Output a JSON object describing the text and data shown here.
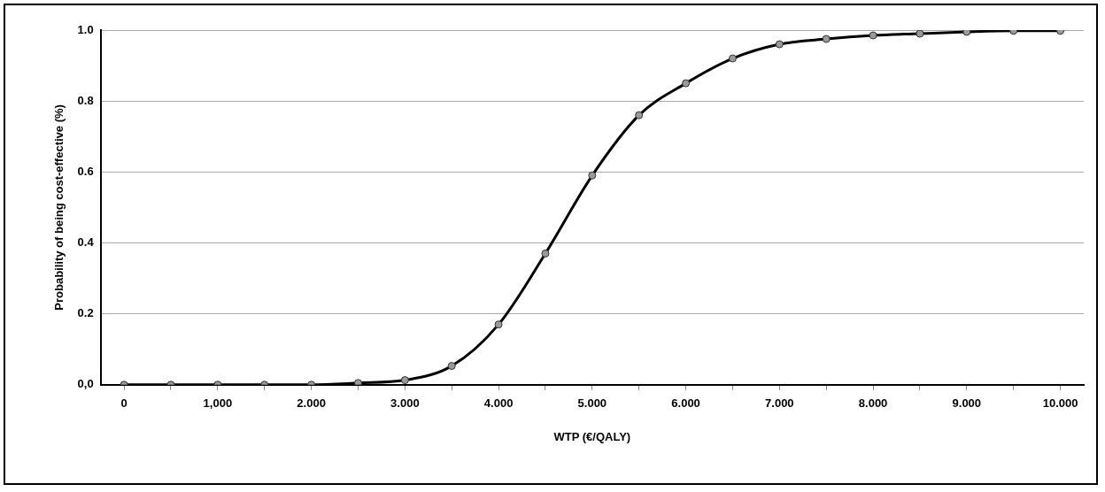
{
  "chart_data": {
    "type": "line",
    "xlabel": "WTP (€/QALY)",
    "ylabel": "Probability of being cost-effective (%)",
    "categories": [
      "0",
      null,
      "1,000",
      null,
      "2.000",
      null,
      "3.000",
      null,
      "4.000",
      null,
      "5.000",
      null,
      "6.000",
      null,
      "7.000",
      null,
      "8.000",
      null,
      "9.000",
      null,
      "10.000"
    ],
    "series": [
      {
        "color": "#000000",
        "values": [
          0,
          0,
          0,
          0,
          0,
          0.005,
          0.013,
          0.053,
          0.17,
          0.37,
          0.59,
          0.76,
          0.85,
          0.92,
          0.96,
          0.975,
          0.985,
          0.99,
          0.995,
          0.998,
          0.998
        ]
      }
    ],
    "ylim": [
      0,
      1
    ],
    "yticks": [
      {
        "value": 0,
        "label": "0,0"
      },
      {
        "value": 0.2,
        "label": "0.2"
      },
      {
        "value": 0.4,
        "label": "0.4"
      },
      {
        "value": 0.6,
        "label": "0.6"
      },
      {
        "value": 0.8,
        "label": "0.8"
      },
      {
        "value": 1,
        "label": "1.0"
      }
    ],
    "grid": "y",
    "legend": false,
    "marker": "circle",
    "line_style": "solid"
  }
}
